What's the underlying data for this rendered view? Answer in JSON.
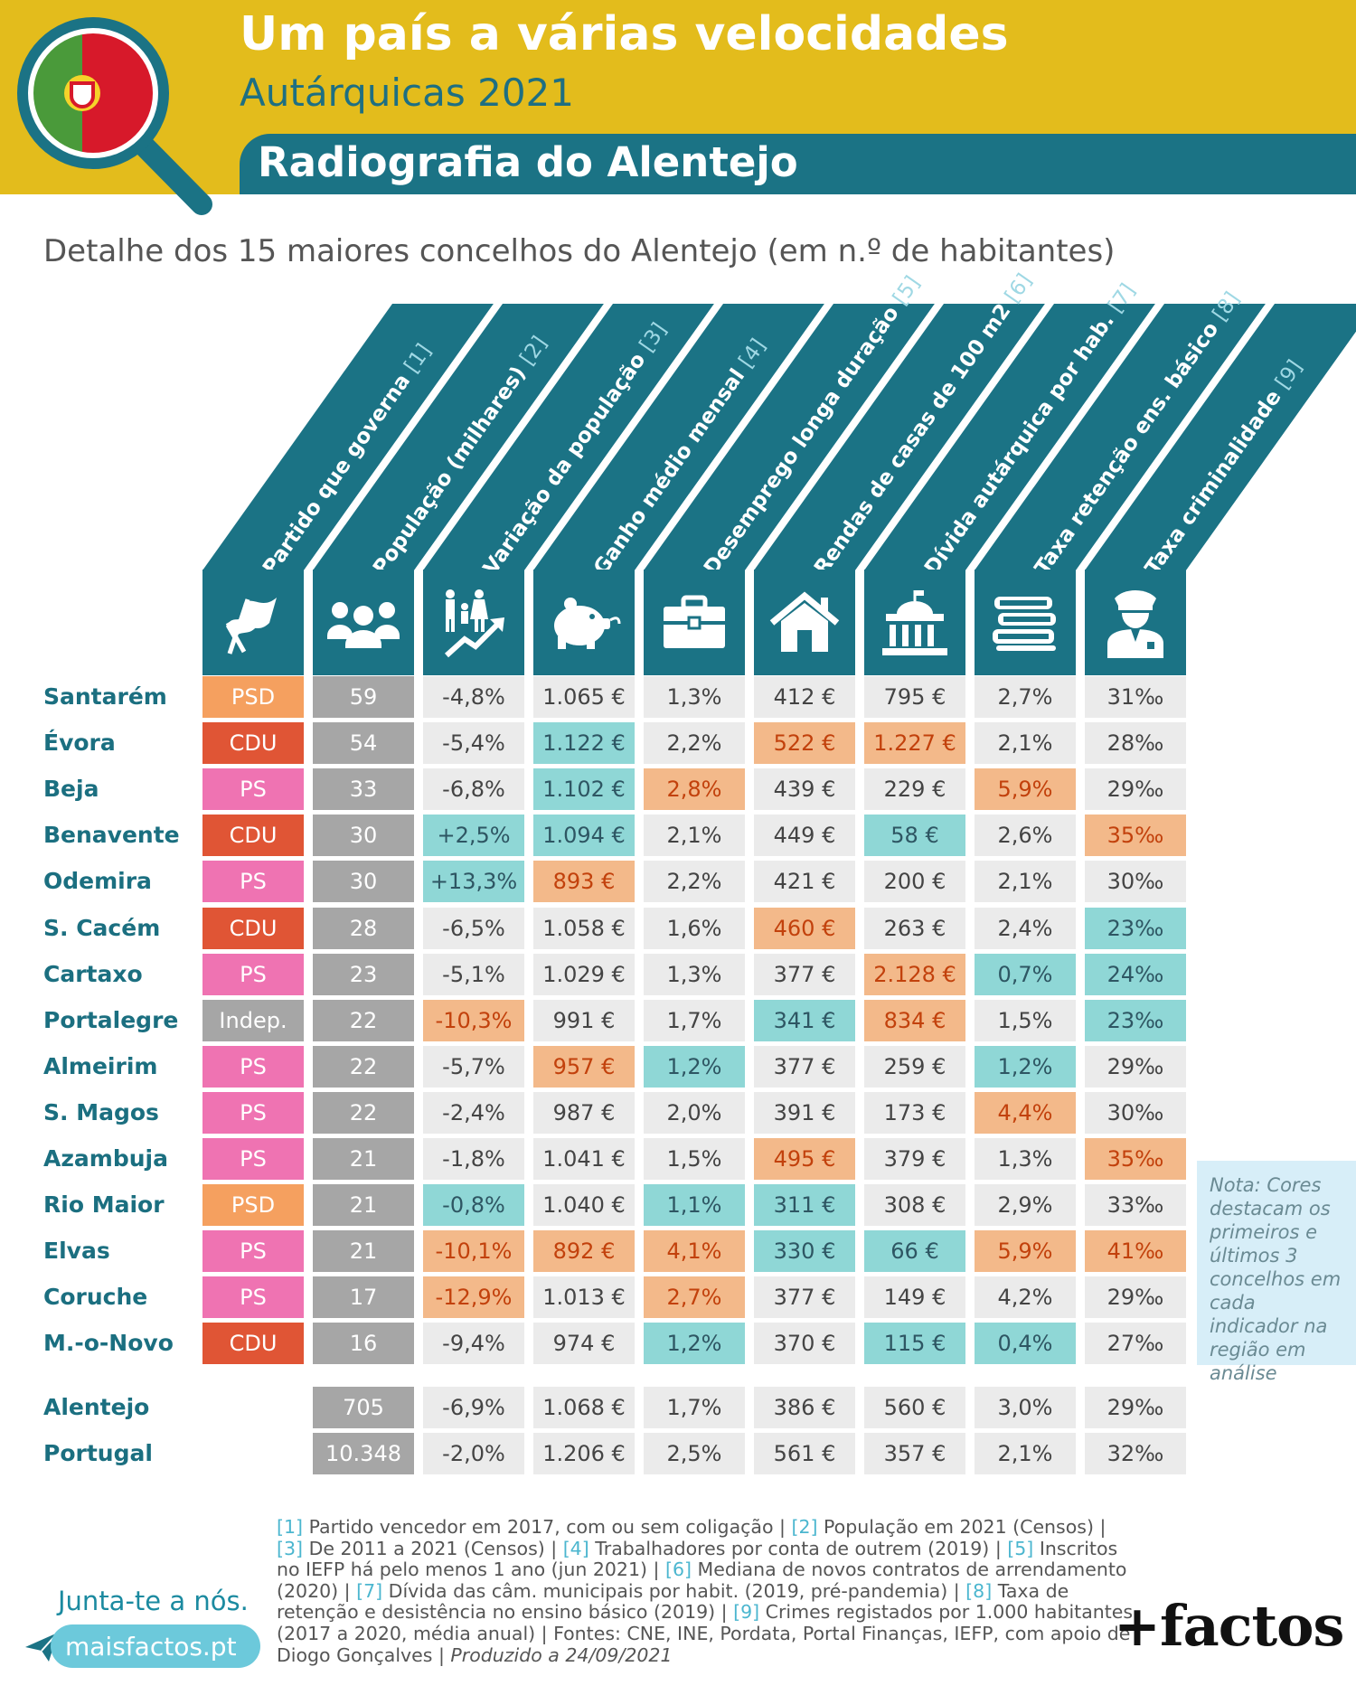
{
  "header": {
    "title": "Um país a várias velocidades",
    "subtitle": "Autárquicas 2021",
    "region_title": "Radiografia do Alentejo"
  },
  "intro": "Detalhe dos 15 maiores concelhos do Alentejo (em n.º de habitantes)",
  "columns": [
    {
      "label": "Partido que governa",
      "ref": "[1]",
      "icon": "flag-icon"
    },
    {
      "label": "População (milhares)",
      "ref": "[2]",
      "icon": "people-group-icon"
    },
    {
      "label": "Variação da população",
      "ref": "[3]",
      "icon": "family-growth-icon"
    },
    {
      "label": "Ganho médio mensal",
      "ref": "[4]",
      "icon": "piggy-bank-icon"
    },
    {
      "label": "Desemprego longa duração",
      "ref": "[5]",
      "icon": "briefcase-icon"
    },
    {
      "label": "Rendas de casas de 100 m2",
      "ref": "[6]",
      "icon": "house-icon"
    },
    {
      "label": "Dívida autárquica por hab.",
      "ref": "[7]",
      "icon": "town-hall-icon"
    },
    {
      "label": "Taxa retenção ens. básico",
      "ref": "[8]",
      "icon": "books-icon"
    },
    {
      "label": "Taxa criminalidade",
      "ref": "[9]",
      "icon": "police-officer-icon"
    }
  ],
  "rows": [
    {
      "name": "Santarém",
      "cells": [
        {
          "v": "PSD",
          "c": "p-psd"
        },
        {
          "v": "59",
          "c": "gray"
        },
        {
          "v": "-4,8%",
          "c": "plain"
        },
        {
          "v": "1.065 €",
          "c": "plain"
        },
        {
          "v": "1,3%",
          "c": "plain"
        },
        {
          "v": "412 €",
          "c": "plain"
        },
        {
          "v": "795 €",
          "c": "plain"
        },
        {
          "v": "2,7%",
          "c": "plain"
        },
        {
          "v": "31‰",
          "c": "plain"
        }
      ]
    },
    {
      "name": "Évora",
      "cells": [
        {
          "v": "CDU",
          "c": "p-cdu"
        },
        {
          "v": "54",
          "c": "gray"
        },
        {
          "v": "-5,4%",
          "c": "plain"
        },
        {
          "v": "1.122 €",
          "c": "hi-high"
        },
        {
          "v": "2,2%",
          "c": "plain"
        },
        {
          "v": "522 €",
          "c": "hi-low"
        },
        {
          "v": "1.227 €",
          "c": "hi-low"
        },
        {
          "v": "2,1%",
          "c": "plain"
        },
        {
          "v": "28‰",
          "c": "plain"
        }
      ]
    },
    {
      "name": "Beja",
      "cells": [
        {
          "v": "PS",
          "c": "p-ps"
        },
        {
          "v": "33",
          "c": "gray"
        },
        {
          "v": "-6,8%",
          "c": "plain"
        },
        {
          "v": "1.102 €",
          "c": "hi-high"
        },
        {
          "v": "2,8%",
          "c": "hi-low"
        },
        {
          "v": "439 €",
          "c": "plain"
        },
        {
          "v": "229 €",
          "c": "plain"
        },
        {
          "v": "5,9%",
          "c": "hi-low"
        },
        {
          "v": "29‰",
          "c": "plain"
        }
      ]
    },
    {
      "name": "Benavente",
      "cells": [
        {
          "v": "CDU",
          "c": "p-cdu"
        },
        {
          "v": "30",
          "c": "gray"
        },
        {
          "v": "+2,5%",
          "c": "hi-high"
        },
        {
          "v": "1.094 €",
          "c": "hi-high"
        },
        {
          "v": "2,1%",
          "c": "plain"
        },
        {
          "v": "449 €",
          "c": "plain"
        },
        {
          "v": "58 €",
          "c": "hi-high"
        },
        {
          "v": "2,6%",
          "c": "plain"
        },
        {
          "v": "35‰",
          "c": "hi-low"
        }
      ]
    },
    {
      "name": "Odemira",
      "cells": [
        {
          "v": "PS",
          "c": "p-ps"
        },
        {
          "v": "30",
          "c": "gray"
        },
        {
          "v": "+13,3%",
          "c": "hi-high"
        },
        {
          "v": "893 €",
          "c": "hi-low"
        },
        {
          "v": "2,2%",
          "c": "plain"
        },
        {
          "v": "421 €",
          "c": "plain"
        },
        {
          "v": "200 €",
          "c": "plain"
        },
        {
          "v": "2,1%",
          "c": "plain"
        },
        {
          "v": "30‰",
          "c": "plain"
        }
      ]
    },
    {
      "name": "S. Cacém",
      "cells": [
        {
          "v": "CDU",
          "c": "p-cdu"
        },
        {
          "v": "28",
          "c": "gray"
        },
        {
          "v": "-6,5%",
          "c": "plain"
        },
        {
          "v": "1.058 €",
          "c": "plain"
        },
        {
          "v": "1,6%",
          "c": "plain"
        },
        {
          "v": "460 €",
          "c": "hi-low"
        },
        {
          "v": "263 €",
          "c": "plain"
        },
        {
          "v": "2,4%",
          "c": "plain"
        },
        {
          "v": "23‰",
          "c": "hi-high"
        }
      ]
    },
    {
      "name": "Cartaxo",
      "cells": [
        {
          "v": "PS",
          "c": "p-ps"
        },
        {
          "v": "23",
          "c": "gray"
        },
        {
          "v": "-5,1%",
          "c": "plain"
        },
        {
          "v": "1.029 €",
          "c": "plain"
        },
        {
          "v": "1,3%",
          "c": "plain"
        },
        {
          "v": "377 €",
          "c": "plain"
        },
        {
          "v": "2.128 €",
          "c": "hi-low"
        },
        {
          "v": "0,7%",
          "c": "hi-high"
        },
        {
          "v": "24‰",
          "c": "hi-high"
        }
      ]
    },
    {
      "name": "Portalegre",
      "cells": [
        {
          "v": "Indep.",
          "c": "p-indep"
        },
        {
          "v": "22",
          "c": "gray"
        },
        {
          "v": "-10,3%",
          "c": "hi-low"
        },
        {
          "v": "991 €",
          "c": "plain"
        },
        {
          "v": "1,7%",
          "c": "plain"
        },
        {
          "v": "341 €",
          "c": "hi-high"
        },
        {
          "v": "834 €",
          "c": "hi-low"
        },
        {
          "v": "1,5%",
          "c": "plain"
        },
        {
          "v": "23‰",
          "c": "hi-high"
        }
      ]
    },
    {
      "name": "Almeirim",
      "cells": [
        {
          "v": "PS",
          "c": "p-ps"
        },
        {
          "v": "22",
          "c": "gray"
        },
        {
          "v": "-5,7%",
          "c": "plain"
        },
        {
          "v": "957 €",
          "c": "hi-low"
        },
        {
          "v": "1,2%",
          "c": "hi-high"
        },
        {
          "v": "377 €",
          "c": "plain"
        },
        {
          "v": "259 €",
          "c": "plain"
        },
        {
          "v": "1,2%",
          "c": "hi-high"
        },
        {
          "v": "29‰",
          "c": "plain"
        }
      ]
    },
    {
      "name": "S. Magos",
      "cells": [
        {
          "v": "PS",
          "c": "p-ps"
        },
        {
          "v": "22",
          "c": "gray"
        },
        {
          "v": "-2,4%",
          "c": "plain"
        },
        {
          "v": "987 €",
          "c": "plain"
        },
        {
          "v": "2,0%",
          "c": "plain"
        },
        {
          "v": "391 €",
          "c": "plain"
        },
        {
          "v": "173 €",
          "c": "plain"
        },
        {
          "v": "4,4%",
          "c": "hi-low"
        },
        {
          "v": "30‰",
          "c": "plain"
        }
      ]
    },
    {
      "name": "Azambuja",
      "cells": [
        {
          "v": "PS",
          "c": "p-ps"
        },
        {
          "v": "21",
          "c": "gray"
        },
        {
          "v": "-1,8%",
          "c": "plain"
        },
        {
          "v": "1.041 €",
          "c": "plain"
        },
        {
          "v": "1,5%",
          "c": "plain"
        },
        {
          "v": "495 €",
          "c": "hi-low"
        },
        {
          "v": "379 €",
          "c": "plain"
        },
        {
          "v": "1,3%",
          "c": "plain"
        },
        {
          "v": "35‰",
          "c": "hi-low"
        }
      ]
    },
    {
      "name": "Rio Maior",
      "cells": [
        {
          "v": "PSD",
          "c": "p-psd"
        },
        {
          "v": "21",
          "c": "gray"
        },
        {
          "v": "-0,8%",
          "c": "hi-high"
        },
        {
          "v": "1.040 €",
          "c": "plain"
        },
        {
          "v": "1,1%",
          "c": "hi-high"
        },
        {
          "v": "311 €",
          "c": "hi-high"
        },
        {
          "v": "308 €",
          "c": "plain"
        },
        {
          "v": "2,9%",
          "c": "plain"
        },
        {
          "v": "33‰",
          "c": "plain"
        }
      ]
    },
    {
      "name": "Elvas",
      "cells": [
        {
          "v": "PS",
          "c": "p-ps"
        },
        {
          "v": "21",
          "c": "gray"
        },
        {
          "v": "-10,1%",
          "c": "hi-low"
        },
        {
          "v": "892 €",
          "c": "hi-low"
        },
        {
          "v": "4,1%",
          "c": "hi-low"
        },
        {
          "v": "330 €",
          "c": "hi-high"
        },
        {
          "v": "66 €",
          "c": "hi-high"
        },
        {
          "v": "5,9%",
          "c": "hi-low"
        },
        {
          "v": "41‰",
          "c": "hi-low"
        }
      ]
    },
    {
      "name": "Coruche",
      "cells": [
        {
          "v": "PS",
          "c": "p-ps"
        },
        {
          "v": "17",
          "c": "gray"
        },
        {
          "v": "-12,9%",
          "c": "hi-low"
        },
        {
          "v": "1.013 €",
          "c": "plain"
        },
        {
          "v": "2,7%",
          "c": "hi-low"
        },
        {
          "v": "377 €",
          "c": "plain"
        },
        {
          "v": "149 €",
          "c": "plain"
        },
        {
          "v": "4,2%",
          "c": "plain"
        },
        {
          "v": "29‰",
          "c": "plain"
        }
      ]
    },
    {
      "name": "M.-o-Novo",
      "cells": [
        {
          "v": "CDU",
          "c": "p-cdu"
        },
        {
          "v": "16",
          "c": "gray"
        },
        {
          "v": "-9,4%",
          "c": "plain"
        },
        {
          "v": "974 €",
          "c": "plain"
        },
        {
          "v": "1,2%",
          "c": "hi-high"
        },
        {
          "v": "370 €",
          "c": "plain"
        },
        {
          "v": "115 €",
          "c": "hi-high"
        },
        {
          "v": "0,4%",
          "c": "hi-high"
        },
        {
          "v": "27‰",
          "c": "plain"
        }
      ]
    }
  ],
  "totals": [
    {
      "name": "Alentejo",
      "cells": [
        "705",
        "-6,9%",
        "1.068 €",
        "1,7%",
        "386 €",
        "560 €",
        "3,0%",
        "29‰"
      ]
    },
    {
      "name": "Portugal",
      "cells": [
        "10.348",
        "-2,0%",
        "1.206 €",
        "2,5%",
        "561 €",
        "357 €",
        "2,1%",
        "32‰"
      ]
    }
  ],
  "note": "Nota: Cores destacam os primeiros e últimos 3 concelhos em cada indicador na região em análise",
  "footer": {
    "join": "Junta-te a nós.",
    "site": "maisfactos.pt",
    "brand": "+factos",
    "footnotes": [
      {
        "ref": "[1]",
        "text": " Partido vencedor em 2017, com ou sem coligação | "
      },
      {
        "ref": "[2]",
        "text": " População em 2021 (Censos) | "
      },
      {
        "ref": "[3]",
        "text": " De 2011 a 2021 (Censos) | "
      },
      {
        "ref": "[4]",
        "text": " Trabalhadores por conta de outrem (2019) | "
      },
      {
        "ref": "[5]",
        "text": " Inscritos no IEFP há pelo menos 1 ano (jun 2021) | "
      },
      {
        "ref": "[6]",
        "text": " Mediana de novos contratos de arrenda­mento (2020) | "
      },
      {
        "ref": "[7]",
        "text": " Dívida das câm. municipais por habit. (2019, pré-pandemia) | "
      },
      {
        "ref": "[8]",
        "text": " Taxa de retenção e desistência no ensino básico (2019) | "
      },
      {
        "ref": "[9]",
        "text": " Crimes registados por 1.000 habitantes (2017 a 2020, média anual) | Fontes: CNE, INE, Pordata, Portal Finanças, IEFP, com apoio de Diogo Gonçalves | "
      }
    ],
    "produced": "Produzido a 24/09/2021"
  },
  "colors": {
    "header_yellow": "#e3bc1c",
    "teal": "#1b7385",
    "highlight_low": "#f3b98a",
    "highlight_high": "#8fd7d6"
  }
}
